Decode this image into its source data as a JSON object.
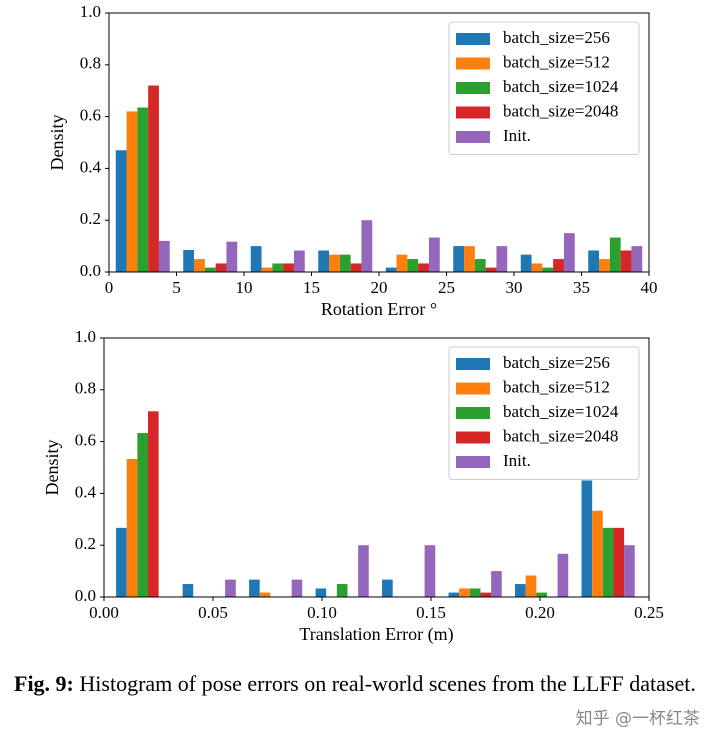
{
  "chart_data": [
    {
      "type": "histogram",
      "xlabel": "Rotation Error °",
      "ylabel": "Density",
      "bins": [
        0,
        5,
        10,
        15,
        20,
        25,
        30,
        35,
        40
      ],
      "series": [
        {
          "name": "batch_size=256",
          "color": "#1f77b4",
          "values": [
            0.47,
            0.085,
            0.1,
            0.083,
            0.017,
            0.1,
            0.067,
            0.083
          ]
        },
        {
          "name": "batch_size=512",
          "color": "#ff7f0e",
          "values": [
            0.62,
            0.05,
            0.017,
            0.067,
            0.067,
            0.1,
            0.033,
            0.05
          ]
        },
        {
          "name": "batch_size=1024",
          "color": "#2ca02c",
          "values": [
            0.635,
            0.017,
            0.033,
            0.067,
            0.05,
            0.05,
            0.017,
            0.133
          ]
        },
        {
          "name": "batch_size=2048",
          "color": "#d62728",
          "values": [
            0.72,
            0.033,
            0.033,
            0.033,
            0.033,
            0.017,
            0.05,
            0.083
          ]
        },
        {
          "name": "Init.",
          "color": "#9467bd",
          "values": [
            0.12,
            0.117,
            0.083,
            0.2,
            0.133,
            0.1,
            0.15,
            0.1
          ]
        }
      ],
      "xlim": [
        0,
        40
      ],
      "xticks": [
        0,
        5,
        10,
        15,
        20,
        25,
        30,
        35,
        40
      ],
      "ylim": [
        0,
        1
      ],
      "yticks": [
        {
          "value": 0,
          "label": "0.0"
        },
        {
          "value": 0.2,
          "label": "0.2"
        },
        {
          "value": 0.4,
          "label": "0.4"
        },
        {
          "value": 0.6,
          "label": "0.6"
        },
        {
          "value": 0.8,
          "label": "0.8"
        },
        {
          "value": 1,
          "label": "1.0"
        }
      ],
      "legend": "upper right"
    },
    {
      "type": "histogram",
      "xlabel": "Translation Error (m)",
      "ylabel": "Density",
      "bins": [
        0.0025,
        0.033,
        0.0635,
        0.094,
        0.1245,
        0.155,
        0.1855,
        0.216,
        0.2465
      ],
      "series": [
        {
          "name": "batch_size=256",
          "color": "#1f77b4",
          "values": [
            0.267,
            0.05,
            0.067,
            0.033,
            0.067,
            0.017,
            0.05,
            0.45
          ]
        },
        {
          "name": "batch_size=512",
          "color": "#ff7f0e",
          "values": [
            0.533,
            0,
            0.017,
            0,
            0,
            0.033,
            0.083,
            0.333
          ]
        },
        {
          "name": "batch_size=1024",
          "color": "#2ca02c",
          "values": [
            0.633,
            0,
            0,
            0.05,
            0,
            0.033,
            0.017,
            0.267
          ]
        },
        {
          "name": "batch_size=2048",
          "color": "#d62728",
          "values": [
            0.717,
            0,
            0,
            0,
            0,
            0.017,
            0,
            0.267
          ]
        },
        {
          "name": "Init.",
          "color": "#9467bd",
          "values": [
            0,
            0.067,
            0.067,
            0.2,
            0.2,
            0.1,
            0.167,
            0.2
          ]
        }
      ],
      "xlim": [
        0,
        0.25
      ],
      "xticks": [
        {
          "value": 0,
          "label": "0.00"
        },
        {
          "value": 0.05,
          "label": "0.05"
        },
        {
          "value": 0.1,
          "label": "0.10"
        },
        {
          "value": 0.15,
          "label": "0.15"
        },
        {
          "value": 0.2,
          "label": "0.20"
        },
        {
          "value": 0.25,
          "label": "0.25"
        }
      ],
      "ylim": [
        0,
        1
      ],
      "yticks": [
        {
          "value": 0,
          "label": "0.0"
        },
        {
          "value": 0.2,
          "label": "0.2"
        },
        {
          "value": 0.4,
          "label": "0.4"
        },
        {
          "value": 0.6,
          "label": "0.6"
        },
        {
          "value": 0.8,
          "label": "0.8"
        },
        {
          "value": 1,
          "label": "1.0"
        }
      ],
      "legend": "upper right"
    }
  ],
  "caption": {
    "label": "Fig. 9:",
    "text": "Histogram of pose errors on real-world scenes from the LLFF dataset."
  },
  "watermark": "知乎 @一杯红茶"
}
